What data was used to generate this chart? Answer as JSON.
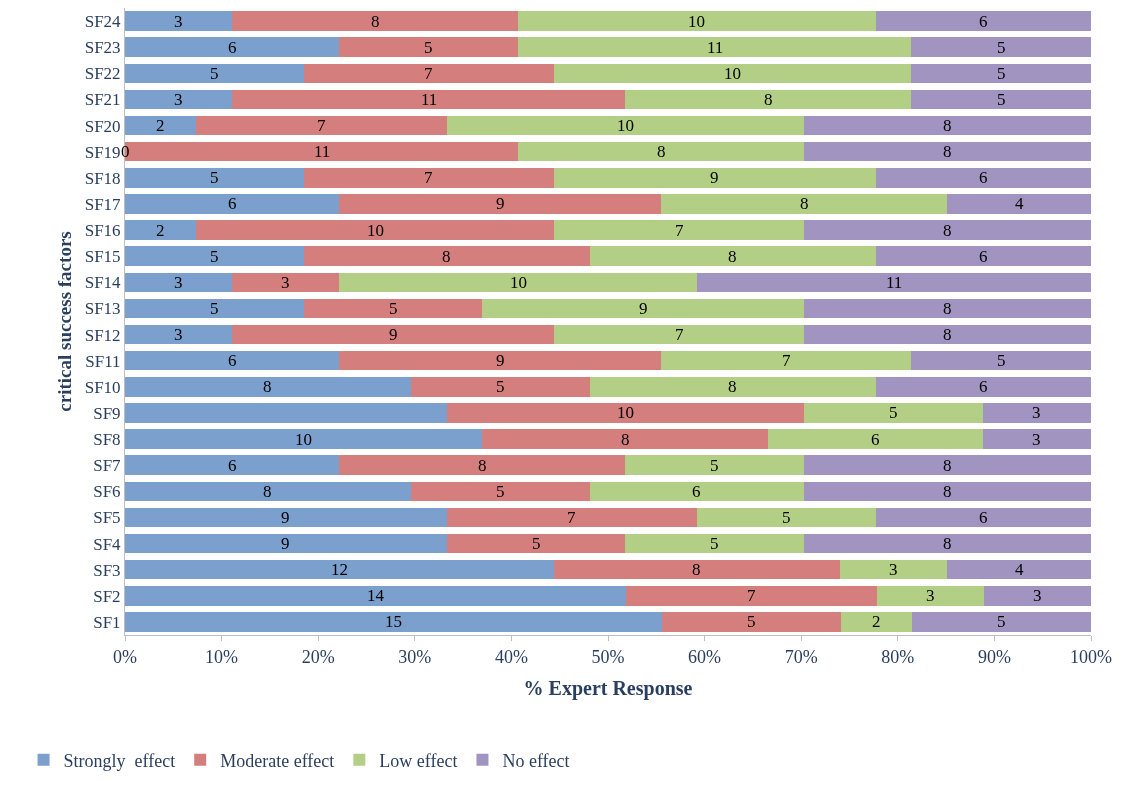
{
  "chart_data": {
    "type": "bar",
    "orientation": "horizontal",
    "stacked": true,
    "xlabel": "% Expert Response",
    "ylabel": "critical success factors",
    "categories": [
      "SF24",
      "SF23",
      "SF22",
      "SF21",
      "SF20",
      "SF19",
      "SF18",
      "SF17",
      "SF16",
      "SF15",
      "SF14",
      "SF13",
      "SF12",
      "SF11",
      "SF10",
      "SF9",
      "SF8",
      "SF7",
      "SF6",
      "SF5",
      "SF4",
      "SF3",
      "SF2",
      "SF1"
    ],
    "series": [
      {
        "name": "Strongly  effect",
        "color": "#7ba0cd",
        "values": [
          11.1,
          22.2,
          18.5,
          11.1,
          7.4,
          0,
          18.5,
          22.2,
          7.4,
          18.5,
          11.1,
          18.5,
          11.1,
          22.2,
          29.6,
          33.3,
          37.0,
          22.2,
          29.6,
          33.3,
          33.3,
          44.4,
          51.9,
          55.6
        ]
      },
      {
        "name": "Moderate effect",
        "color": "#d47f7d",
        "values": [
          29.6,
          18.5,
          25.9,
          40.7,
          25.9,
          40.7,
          25.9,
          33.3,
          37.0,
          29.6,
          11.1,
          18.5,
          33.3,
          33.3,
          18.5,
          37.0,
          29.6,
          29.6,
          18.5,
          25.9,
          18.5,
          29.6,
          25.9,
          18.5
        ]
      },
      {
        "name": "Low effect",
        "color": "#b3cf85",
        "values": [
          37.0,
          40.7,
          37.0,
          29.6,
          37.0,
          29.6,
          33.3,
          29.6,
          25.9,
          29.6,
          37.0,
          33.3,
          25.9,
          25.9,
          29.6,
          18.5,
          22.2,
          18.5,
          22.2,
          18.5,
          18.5,
          11.1,
          11.1,
          7.4
        ]
      },
      {
        "name": "No effect",
        "color": "#a294c0",
        "values": [
          22.3,
          18.6,
          18.6,
          18.6,
          29.7,
          29.7,
          22.3,
          14.9,
          29.7,
          22.3,
          40.8,
          29.7,
          29.7,
          18.6,
          22.3,
          11.2,
          11.2,
          29.7,
          29.7,
          22.3,
          29.7,
          14.9,
          11.1,
          18.5
        ]
      }
    ],
    "annotations": [
      {
        "text": "3",
        "x": 5.55,
        "y": "SF24"
      },
      {
        "text": "8",
        "x": 25.9,
        "y": "SF24"
      },
      {
        "text": "10",
        "x": 59.2,
        "y": "SF24"
      },
      {
        "text": "6",
        "x": 88.85,
        "y": "SF24"
      },
      {
        "text": "6",
        "x": 11.1,
        "y": "SF23"
      },
      {
        "text": "5",
        "x": 31.45,
        "y": "SF23"
      },
      {
        "text": "11",
        "x": 61.05,
        "y": "SF23"
      },
      {
        "text": "5",
        "x": 90.7,
        "y": "SF23"
      },
      {
        "text": "5",
        "x": 9.25,
        "y": "SF22"
      },
      {
        "text": "7",
        "x": 31.45,
        "y": "SF22"
      },
      {
        "text": "10",
        "x": 62.9,
        "y": "SF22"
      },
      {
        "text": "5",
        "x": 90.7,
        "y": "SF22"
      },
      {
        "text": "3",
        "x": 5.55,
        "y": "SF21"
      },
      {
        "text": "11",
        "x": 31.45,
        "y": "SF21"
      },
      {
        "text": "8",
        "x": 66.6,
        "y": "SF21"
      },
      {
        "text": "5",
        "x": 90.7,
        "y": "SF21"
      },
      {
        "text": "2",
        "x": 3.7,
        "y": "SF20"
      },
      {
        "text": "7",
        "x": 20.35,
        "y": "SF20"
      },
      {
        "text": "10",
        "x": 51.8,
        "y": "SF20"
      },
      {
        "text": "8",
        "x": 85.15,
        "y": "SF20"
      },
      {
        "text": "0",
        "x": 0,
        "y": "SF19"
      },
      {
        "text": "11",
        "x": 20.35,
        "y": "SF19"
      },
      {
        "text": "8",
        "x": 55.5,
        "y": "SF19"
      },
      {
        "text": "8",
        "x": 85.15,
        "y": "SF19"
      },
      {
        "text": "5",
        "x": 9.25,
        "y": "SF18"
      },
      {
        "text": "7",
        "x": 31.45,
        "y": "SF18"
      },
      {
        "text": "9",
        "x": 61.05,
        "y": "SF18"
      },
      {
        "text": "6",
        "x": 88.85,
        "y": "SF18"
      },
      {
        "text": "6",
        "x": 11.1,
        "y": "SF17"
      },
      {
        "text": "9",
        "x": 38.85,
        "y": "SF17"
      },
      {
        "text": "8",
        "x": 70.3,
        "y": "SF17"
      },
      {
        "text": "4",
        "x": 92.55,
        "y": "SF17"
      },
      {
        "text": "2",
        "x": 3.7,
        "y": "SF16"
      },
      {
        "text": "10",
        "x": 25.9,
        "y": "SF16"
      },
      {
        "text": "7",
        "x": 57.35,
        "y": "SF16"
      },
      {
        "text": "8",
        "x": 85.15,
        "y": "SF16"
      },
      {
        "text": "5",
        "x": 9.25,
        "y": "SF15"
      },
      {
        "text": "8",
        "x": 33.3,
        "y": "SF15"
      },
      {
        "text": "8",
        "x": 62.9,
        "y": "SF15"
      },
      {
        "text": "6",
        "x": 88.85,
        "y": "SF15"
      },
      {
        "text": "3",
        "x": 5.55,
        "y": "SF14"
      },
      {
        "text": "3",
        "x": 16.65,
        "y": "SF14"
      },
      {
        "text": "10",
        "x": 40.7,
        "y": "SF14"
      },
      {
        "text": "11",
        "x": 79.6,
        "y": "SF14"
      },
      {
        "text": "5",
        "x": 9.25,
        "y": "SF13"
      },
      {
        "text": "5",
        "x": 27.75,
        "y": "SF13"
      },
      {
        "text": "9",
        "x": 53.65,
        "y": "SF13"
      },
      {
        "text": "8",
        "x": 85.15,
        "y": "SF13"
      },
      {
        "text": "3",
        "x": 5.55,
        "y": "SF12"
      },
      {
        "text": "9",
        "x": 27.75,
        "y": "SF12"
      },
      {
        "text": "7",
        "x": 57.35,
        "y": "SF12"
      },
      {
        "text": "8",
        "x": 85.15,
        "y": "SF12"
      },
      {
        "text": "6",
        "x": 11.1,
        "y": "SF11"
      },
      {
        "text": "9",
        "x": 38.85,
        "y": "SF11"
      },
      {
        "text": "7",
        "x": 68.45,
        "y": "SF11"
      },
      {
        "text": "5",
        "x": 90.7,
        "y": "SF11"
      },
      {
        "text": "8",
        "x": 14.8,
        "y": "SF10"
      },
      {
        "text": "5",
        "x": 38.85,
        "y": "SF10"
      },
      {
        "text": "8",
        "x": 62.9,
        "y": "SF10"
      },
      {
        "text": "6",
        "x": 88.85,
        "y": "SF10"
      },
      {
        "text": "10",
        "x": 51.8,
        "y": "SF9"
      },
      {
        "text": "5",
        "x": 79.55,
        "y": "SF9"
      },
      {
        "text": "3",
        "x": 94.4,
        "y": "SF9"
      },
      {
        "text": "10",
        "x": 18.5,
        "y": "SF8"
      },
      {
        "text": "8",
        "x": 51.8,
        "y": "SF8"
      },
      {
        "text": "6",
        "x": 77.7,
        "y": "SF8"
      },
      {
        "text": "3",
        "x": 94.4,
        "y": "SF8"
      },
      {
        "text": "6",
        "x": 11.1,
        "y": "SF7"
      },
      {
        "text": "8",
        "x": 37.0,
        "y": "SF7"
      },
      {
        "text": "5",
        "x": 61.05,
        "y": "SF7"
      },
      {
        "text": "8",
        "x": 85.15,
        "y": "SF7"
      },
      {
        "text": "8",
        "x": 14.8,
        "y": "SF6"
      },
      {
        "text": "5",
        "x": 38.85,
        "y": "SF6"
      },
      {
        "text": "6",
        "x": 59.2,
        "y": "SF6"
      },
      {
        "text": "8",
        "x": 85.15,
        "y": "SF6"
      },
      {
        "text": "9",
        "x": 16.65,
        "y": "SF5"
      },
      {
        "text": "7",
        "x": 46.25,
        "y": "SF5"
      },
      {
        "text": "5",
        "x": 68.45,
        "y": "SF5"
      },
      {
        "text": "6",
        "x": 88.85,
        "y": "SF5"
      },
      {
        "text": "9",
        "x": 16.65,
        "y": "SF4"
      },
      {
        "text": "5",
        "x": 42.55,
        "y": "SF4"
      },
      {
        "text": "5",
        "x": 61.05,
        "y": "SF4"
      },
      {
        "text": "8",
        "x": 85.15,
        "y": "SF4"
      },
      {
        "text": "12",
        "x": 22.2,
        "y": "SF3"
      },
      {
        "text": "8",
        "x": 59.2,
        "y": "SF3"
      },
      {
        "text": "3",
        "x": 79.55,
        "y": "SF3"
      },
      {
        "text": "4",
        "x": 92.55,
        "y": "SF3"
      },
      {
        "text": "14",
        "x": 25.95,
        "y": "SF2"
      },
      {
        "text": "7",
        "x": 64.85,
        "y": "SF2"
      },
      {
        "text": "3",
        "x": 83.35,
        "y": "SF2"
      },
      {
        "text": "3",
        "x": 94.45,
        "y": "SF2"
      },
      {
        "text": "15",
        "x": 27.8,
        "y": "SF1"
      },
      {
        "text": "5",
        "x": 64.85,
        "y": "SF1"
      },
      {
        "text": "2",
        "x": 77.8,
        "y": "SF1"
      },
      {
        "text": "5",
        "x": 90.75,
        "y": "SF1"
      }
    ],
    "xlim": [
      0,
      100
    ],
    "xticks": [
      {
        "value": 0,
        "label": "0%"
      },
      {
        "value": 10,
        "label": "10%"
      },
      {
        "value": 20,
        "label": "20%"
      },
      {
        "value": 30,
        "label": "30%"
      },
      {
        "value": 40,
        "label": "40%"
      },
      {
        "value": 50,
        "label": "50%"
      },
      {
        "value": 60,
        "label": "60%"
      },
      {
        "value": 70,
        "label": "70%"
      },
      {
        "value": 80,
        "label": "80%"
      },
      {
        "value": 90,
        "label": "90%"
      },
      {
        "value": 100,
        "label": "100%"
      }
    ],
    "grid": false,
    "legend": "bottom left"
  }
}
